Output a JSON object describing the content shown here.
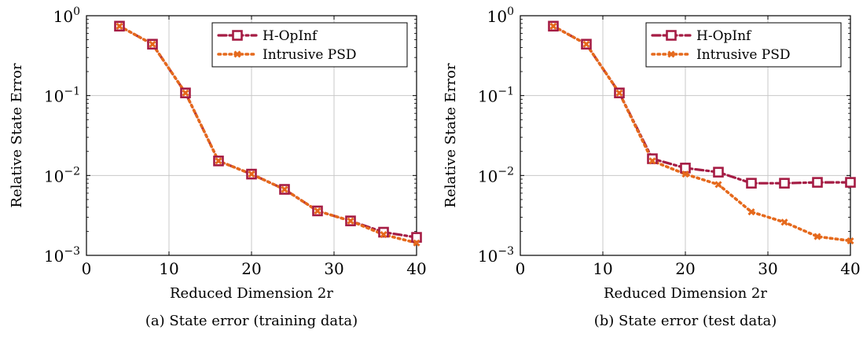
{
  "colors": {
    "hopinf": "#a51c44",
    "psd": "#e5691c",
    "grid": "#c8c8c8"
  },
  "legend": {
    "placement": "top-right",
    "entries": [
      "H-OpInf",
      "Intrusive PSD"
    ]
  },
  "chart_data": [
    {
      "type": "line",
      "caption": "(a) State error (training data)",
      "xlabel": "Reduced Dimension 2r",
      "ylabel": "Relative State Error",
      "xlim": [
        0,
        40
      ],
      "ylim": [
        0.001,
        1
      ],
      "yscale": "log",
      "grid": true,
      "xticks": [
        "0",
        "10",
        "20",
        "30",
        "40"
      ],
      "yticks": [
        {
          "base": "10",
          "exp": "0"
        },
        {
          "base": "10",
          "exp": "−1"
        },
        {
          "base": "10",
          "exp": "−2"
        },
        {
          "base": "10",
          "exp": "−3"
        }
      ],
      "x": [
        4,
        8,
        12,
        16,
        20,
        24,
        28,
        32,
        36,
        40
      ],
      "series": [
        {
          "name": "H-OpInf",
          "values": [
            0.74,
            0.44,
            0.108,
            0.0152,
            0.0104,
            0.0067,
            0.0036,
            0.0027,
            0.00195,
            0.00168
          ]
        },
        {
          "name": "Intrusive PSD",
          "values": [
            0.74,
            0.44,
            0.108,
            0.0152,
            0.0104,
            0.0067,
            0.0036,
            0.0027,
            0.00182,
            0.00143
          ]
        }
      ]
    },
    {
      "type": "line",
      "caption": "(b) State error (test data)",
      "xlabel": "Reduced Dimension 2r",
      "ylabel": "Relative State Error",
      "xlim": [
        0,
        40
      ],
      "ylim": [
        0.001,
        1
      ],
      "yscale": "log",
      "grid": true,
      "xticks": [
        "0",
        "10",
        "20",
        "30",
        "40"
      ],
      "yticks": [
        {
          "base": "10",
          "exp": "0"
        },
        {
          "base": "10",
          "exp": "−1"
        },
        {
          "base": "10",
          "exp": "−2"
        },
        {
          "base": "10",
          "exp": "−3"
        }
      ],
      "x": [
        4,
        8,
        12,
        16,
        20,
        24,
        28,
        32,
        36,
        40
      ],
      "series": [
        {
          "name": "H-OpInf",
          "values": [
            0.74,
            0.44,
            0.108,
            0.0162,
            0.0124,
            0.011,
            0.008,
            0.008,
            0.0082,
            0.0082
          ]
        },
        {
          "name": "Intrusive PSD",
          "values": [
            0.74,
            0.44,
            0.108,
            0.0152,
            0.0104,
            0.0077,
            0.0035,
            0.0026,
            0.00172,
            0.00152
          ]
        }
      ]
    }
  ]
}
